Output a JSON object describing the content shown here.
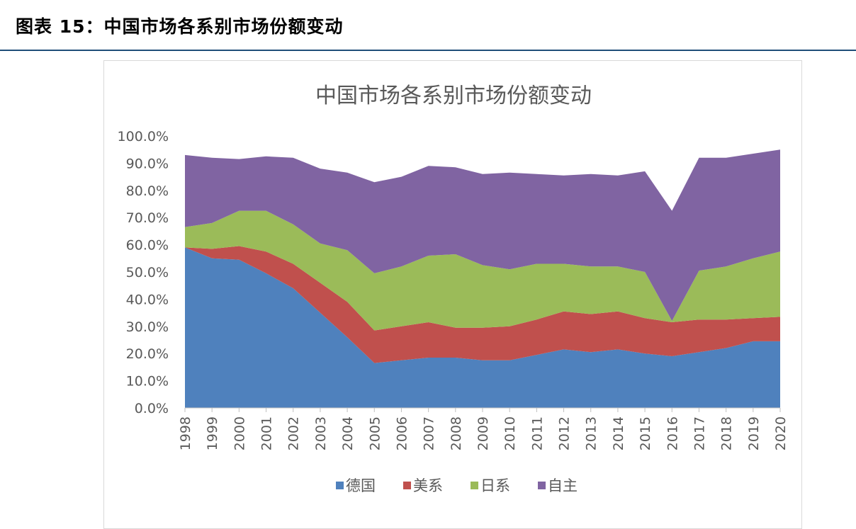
{
  "figure_caption": "图表 15：中国市场各系别市场份额变动",
  "chart_data": {
    "type": "area",
    "stacked": true,
    "title": "中国市场各系别市场份额变动",
    "xlabel": "",
    "ylabel": "",
    "ylim": [
      0,
      100
    ],
    "y_ticks": [
      "0.0%",
      "10.0%",
      "20.0%",
      "30.0%",
      "40.0%",
      "50.0%",
      "60.0%",
      "70.0%",
      "80.0%",
      "90.0%",
      "100.0%"
    ],
    "grid": false,
    "legend_position": "bottom",
    "categories": [
      "1998",
      "1999",
      "2000",
      "2001",
      "2002",
      "2003",
      "2004",
      "2005",
      "2006",
      "2007",
      "2008",
      "2009",
      "2010",
      "2011",
      "2012",
      "2013",
      "2014",
      "2015",
      "2016",
      "2017",
      "2018",
      "2019",
      "2020"
    ],
    "series": [
      {
        "name": "德国",
        "color": "#4f81bd",
        "values": [
          59.0,
          55.0,
          54.5,
          49.5,
          44.0,
          35.0,
          26.0,
          16.5,
          17.5,
          18.5,
          18.5,
          17.5,
          17.5,
          19.5,
          21.5,
          20.5,
          21.5,
          20.0,
          19.0,
          20.5,
          22.0,
          24.5,
          24.5
        ]
      },
      {
        "name": "美系",
        "color": "#c0504d",
        "values": [
          0.0,
          3.5,
          5.0,
          8.0,
          9.0,
          11.0,
          13.0,
          12.0,
          12.5,
          13.0,
          11.0,
          12.0,
          12.5,
          13.0,
          14.0,
          14.0,
          14.0,
          13.0,
          12.5,
          12.0,
          10.5,
          8.5,
          9.0
        ]
      },
      {
        "name": "日系",
        "color": "#9bbb59",
        "values": [
          7.5,
          9.5,
          13.0,
          15.0,
          14.5,
          14.5,
          19.0,
          21.0,
          22.0,
          24.5,
          27.0,
          23.0,
          21.0,
          20.5,
          17.5,
          17.5,
          16.5,
          17.0,
          0.5,
          18.0,
          19.5,
          22.0,
          24.0
        ]
      },
      {
        "name": "自主",
        "color": "#8064a2",
        "values": [
          26.5,
          24.0,
          19.0,
          20.0,
          24.5,
          27.5,
          28.5,
          33.5,
          33.0,
          33.0,
          32.0,
          33.5,
          35.5,
          33.0,
          32.5,
          34.0,
          33.5,
          37.0,
          40.5,
          41.5,
          40.0,
          38.5,
          37.5
        ]
      }
    ]
  }
}
